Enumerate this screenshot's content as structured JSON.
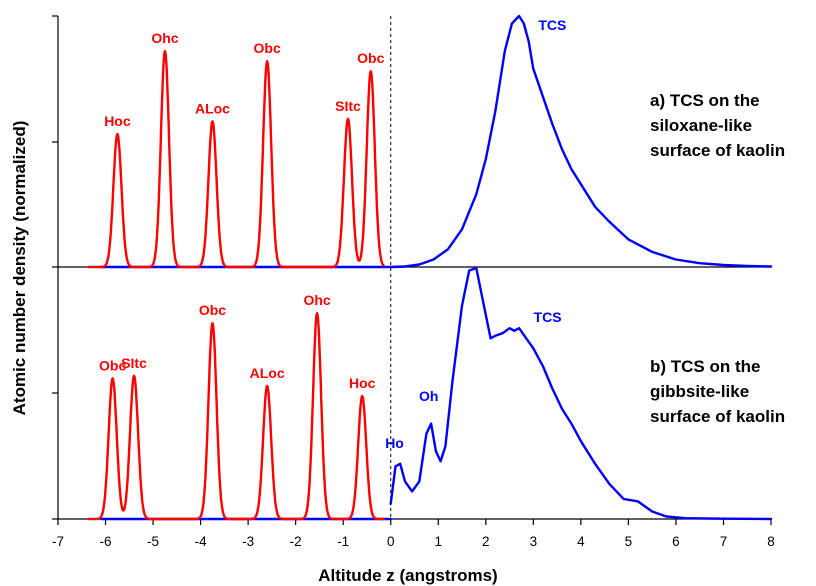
{
  "chart_data": {
    "type": "line",
    "xlabel": "Altitude z (angstroms)",
    "ylabel": "Atomic number density (normalized)",
    "xlim": [
      -7,
      8
    ],
    "xticks": [
      "-7",
      "-6",
      "-5",
      "-4",
      "-3",
      "-2",
      "-1",
      "0",
      "1",
      "2",
      "3",
      "4",
      "5",
      "6",
      "7",
      "8"
    ],
    "reference_line_x": 0,
    "colors": {
      "surface": "#ff0000",
      "tcs": "#0000ff"
    },
    "panels": [
      {
        "annotation": [
          "a) TCS on the",
          "siloxane-like",
          "surface of kaolin"
        ],
        "surface_peaks": [
          {
            "label": "Hoc",
            "x": -5.75,
            "y": 0.53
          },
          {
            "label": "Ohc",
            "x": -4.75,
            "y": 0.86
          },
          {
            "label": "ALoc",
            "x": -3.75,
            "y": 0.58
          },
          {
            "label": "Obc",
            "x": -2.6,
            "y": 0.82
          },
          {
            "label": "SItc",
            "x": -0.9,
            "y": 0.59
          },
          {
            "label": "Obc",
            "x": -0.42,
            "y": 0.78
          }
        ],
        "tcs_series": {
          "label": "TCS",
          "x": [
            0.0,
            0.3,
            0.6,
            0.9,
            1.2,
            1.5,
            1.8,
            2.0,
            2.2,
            2.4,
            2.55,
            2.7,
            2.8,
            2.9,
            3.0,
            3.2,
            3.4,
            3.6,
            3.8,
            4.0,
            4.3,
            4.6,
            5.0,
            5.5,
            6.0,
            6.5,
            7.0,
            7.5,
            8.0
          ],
          "y": [
            0.0,
            0.002,
            0.01,
            0.03,
            0.07,
            0.15,
            0.29,
            0.43,
            0.62,
            0.86,
            0.97,
            1.0,
            0.97,
            0.9,
            0.79,
            0.68,
            0.57,
            0.47,
            0.39,
            0.33,
            0.24,
            0.18,
            0.11,
            0.06,
            0.03,
            0.015,
            0.008,
            0.004,
            0.002
          ]
        }
      },
      {
        "annotation": [
          "b) TCS on the",
          "gibbsite-like",
          "surface of kaolin"
        ],
        "surface_peaks": [
          {
            "label": "Obc",
            "x": -5.85,
            "y": 0.56
          },
          {
            "label": "SItc",
            "x": -5.4,
            "y": 0.57
          },
          {
            "label": "Obc",
            "x": -3.75,
            "y": 0.78
          },
          {
            "label": "ALoc",
            "x": -2.6,
            "y": 0.53
          },
          {
            "label": "Ohc",
            "x": -1.55,
            "y": 0.82
          },
          {
            "label": "Hoc",
            "x": -0.6,
            "y": 0.49
          }
        ],
        "peak_labels": [
          {
            "label": "Ho",
            "color": "tcs"
          },
          {
            "label": "Oh",
            "color": "tcs"
          },
          {
            "label": "TCS",
            "color": "tcs"
          }
        ],
        "tcs_series": {
          "label": "TCS",
          "x": [
            0.0,
            0.1,
            0.2,
            0.3,
            0.45,
            0.6,
            0.75,
            0.85,
            0.95,
            1.05,
            1.15,
            1.3,
            1.5,
            1.65,
            1.8,
            1.95,
            2.1,
            2.2,
            2.35,
            2.5,
            2.6,
            2.7,
            2.85,
            3.0,
            3.2,
            3.4,
            3.6,
            3.8,
            4.0,
            4.3,
            4.6,
            4.9,
            5.2,
            5.5,
            5.8,
            6.2,
            7.0,
            8.0
          ],
          "y": [
            0.06,
            0.21,
            0.22,
            0.15,
            0.11,
            0.15,
            0.34,
            0.38,
            0.27,
            0.23,
            0.29,
            0.55,
            0.85,
            0.99,
            1.0,
            0.86,
            0.72,
            0.73,
            0.74,
            0.76,
            0.75,
            0.76,
            0.72,
            0.68,
            0.61,
            0.52,
            0.44,
            0.38,
            0.31,
            0.22,
            0.14,
            0.08,
            0.07,
            0.03,
            0.01,
            0.003,
            0.001,
            0.0
          ]
        }
      }
    ]
  }
}
